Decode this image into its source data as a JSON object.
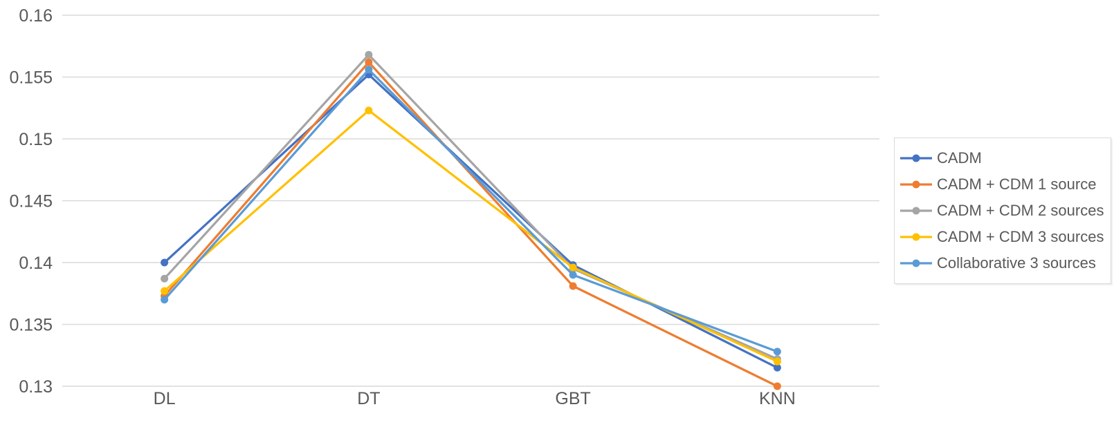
{
  "chart_data": {
    "type": "line",
    "title": "",
    "xlabel": "",
    "ylabel": "",
    "categories": [
      "DL",
      "DT",
      "GBT",
      "KNN"
    ],
    "series": [
      {
        "name": "CADM",
        "color": "#4472C4",
        "values": [
          0.14,
          0.1552,
          0.1398,
          0.1315
        ]
      },
      {
        "name": "CADM + CDM 1 source",
        "color": "#ED7D31",
        "values": [
          0.1373,
          0.1562,
          0.1381,
          0.13
        ]
      },
      {
        "name": "CADM + CDM 2 sources",
        "color": "#A5A5A5",
        "values": [
          0.1387,
          0.1568,
          0.1395,
          0.1322
        ]
      },
      {
        "name": "CADM + CDM 3 sources",
        "color": "#FFC000",
        "values": [
          0.1377,
          0.1523,
          0.1396,
          0.132
        ]
      },
      {
        "name": "Collaborative 3 sources",
        "color": "#5B9BD5",
        "values": [
          0.137,
          0.1556,
          0.139,
          0.1328
        ]
      }
    ],
    "ylim": [
      0.13,
      0.16
    ],
    "y_ticks": [
      {
        "value": 0.16,
        "label": "0.16"
      },
      {
        "value": 0.155,
        "label": "0.155"
      },
      {
        "value": 0.15,
        "label": "0.15"
      },
      {
        "value": 0.145,
        "label": "0.145"
      },
      {
        "value": 0.14,
        "label": "0.14"
      },
      {
        "value": 0.135,
        "label": "0.135"
      },
      {
        "value": 0.13,
        "label": "0.13"
      }
    ],
    "grid": true,
    "legend_position": "right",
    "colors": {
      "gridline": "#D9D9D9",
      "axis_text": "#595959",
      "background": "#FFFFFF"
    }
  }
}
